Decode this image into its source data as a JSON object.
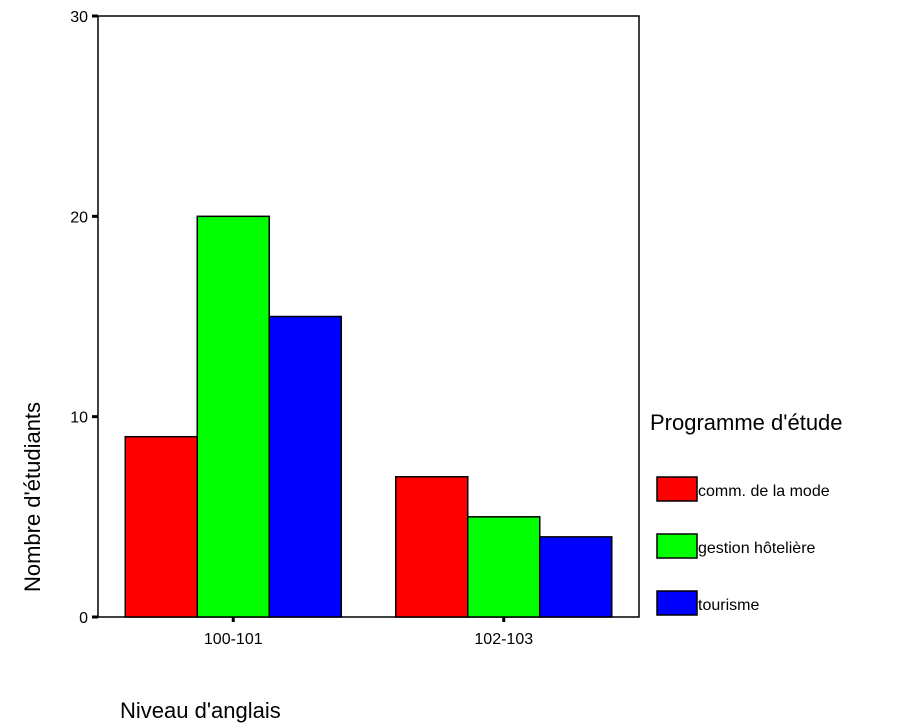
{
  "chart_data": {
    "type": "bar",
    "categories": [
      "100-101",
      "102-103"
    ],
    "series": [
      {
        "name": "comm. de la mode",
        "values": [
          9,
          7
        ],
        "color": "#ff0000"
      },
      {
        "name": "gestion hôtelière",
        "values": [
          20,
          5
        ],
        "color": "#00ff00"
      },
      {
        "name": "tourisme",
        "values": [
          15,
          4
        ],
        "color": "#0000ff"
      }
    ],
    "xlabel": "Niveau d'anglais",
    "ylabel": "Nombre d'étudiants",
    "ylim": [
      0,
      30
    ],
    "yticks": [
      "0",
      "10",
      "20",
      "30"
    ],
    "legend_title": "Programme d'étude",
    "legend_position": "right",
    "grid": false
  }
}
